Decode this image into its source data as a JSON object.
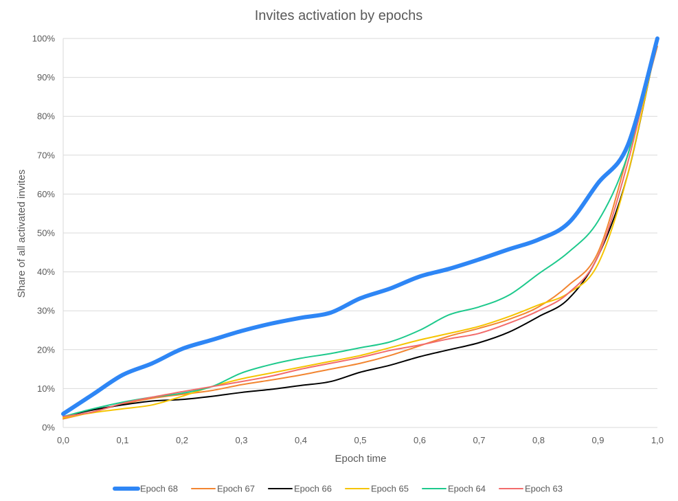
{
  "chart_data": {
    "type": "line",
    "title": "Invites activation by epochs",
    "xlabel": "Epoch time",
    "ylabel": "Share of all activated invites",
    "xlim": [
      0,
      1
    ],
    "ylim": [
      0,
      100
    ],
    "x_ticks": [
      "0,0",
      "0,1",
      "0,2",
      "0,3",
      "0,4",
      "0,5",
      "0,6",
      "0,7",
      "0,8",
      "0,9",
      "1,0"
    ],
    "y_ticks": [
      "0%",
      "10%",
      "20%",
      "30%",
      "40%",
      "50%",
      "60%",
      "70%",
      "80%",
      "90%",
      "100%"
    ],
    "grid": "horizontal",
    "legend": "bottom",
    "x": [
      0.0,
      0.05,
      0.1,
      0.15,
      0.2,
      0.25,
      0.3,
      0.35,
      0.4,
      0.45,
      0.5,
      0.55,
      0.6,
      0.65,
      0.7,
      0.75,
      0.8,
      0.85,
      0.9,
      0.95,
      1.0
    ],
    "series": [
      {
        "name": "Epoch 68",
        "color": "#2e86f5",
        "width": 6,
        "values": [
          3.5,
          8.5,
          13.5,
          16.5,
          20.2,
          22.5,
          24.8,
          26.7,
          28.2,
          29.5,
          33.2,
          35.7,
          38.8,
          40.8,
          43.2,
          45.8,
          48.3,
          52.5,
          62.8,
          72.5,
          100
        ]
      },
      {
        "name": "Epoch 67",
        "color": "#f28530",
        "width": 2,
        "values": [
          2.2,
          4.0,
          6.0,
          7.5,
          8.5,
          9.5,
          11.0,
          12.2,
          13.5,
          15.0,
          16.5,
          18.5,
          21.0,
          23.5,
          25.5,
          27.8,
          31.0,
          36.5,
          45.0,
          70.0,
          98.0
        ]
      },
      {
        "name": "Epoch 66",
        "color": "#000000",
        "width": 2,
        "values": [
          2.8,
          4.5,
          5.8,
          6.8,
          7.2,
          8.0,
          9.0,
          9.8,
          10.8,
          11.8,
          14.2,
          16.0,
          18.2,
          20.0,
          21.8,
          24.5,
          28.5,
          33.0,
          44.0,
          65.0,
          100
        ]
      },
      {
        "name": "Epoch 65",
        "color": "#f5c400",
        "width": 2,
        "values": [
          2.5,
          3.8,
          4.8,
          5.8,
          8.0,
          10.5,
          12.5,
          14.0,
          15.5,
          17.0,
          18.5,
          20.5,
          22.5,
          24.2,
          26.0,
          28.5,
          31.5,
          34.5,
          42.0,
          65.0,
          100
        ]
      },
      {
        "name": "Epoch 64",
        "color": "#1dc98c",
        "width": 2,
        "values": [
          2.8,
          4.8,
          6.5,
          7.8,
          8.8,
          10.5,
          14.0,
          16.2,
          17.8,
          19.0,
          20.5,
          22.0,
          25.0,
          29.0,
          31.0,
          34.0,
          39.5,
          45.0,
          53.0,
          70.0,
          100
        ]
      },
      {
        "name": "Epoch 63",
        "color": "#f26b6b",
        "width": 2,
        "values": [
          2.8,
          4.0,
          6.2,
          7.8,
          9.2,
          10.5,
          11.8,
          13.2,
          15.0,
          16.5,
          18.0,
          19.8,
          21.2,
          22.8,
          24.2,
          26.8,
          30.0,
          34.5,
          44.0,
          68.0,
          100
        ]
      }
    ]
  }
}
